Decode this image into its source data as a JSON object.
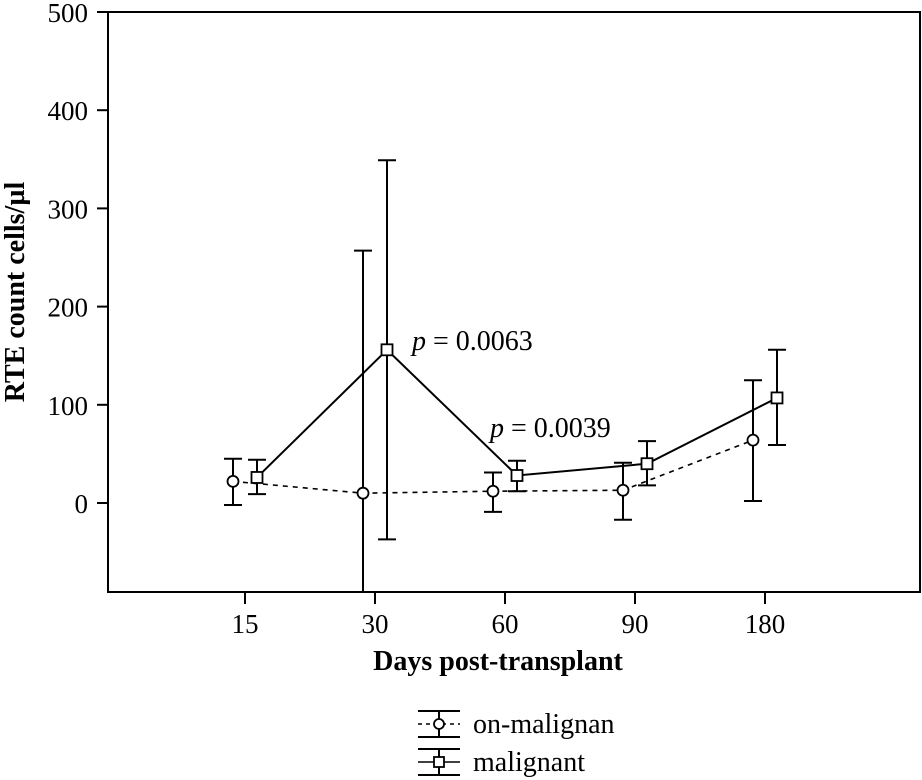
{
  "chart_data": {
    "type": "line",
    "title": "",
    "xlabel": "Days post-transplant",
    "ylabel": "RTE count cells/µl",
    "categories": [
      "15",
      "30",
      "60",
      "90",
      "180"
    ],
    "ylim": [
      -90,
      500
    ],
    "yticks": [
      0,
      100,
      200,
      300,
      400,
      500
    ],
    "grid": false,
    "series": [
      {
        "name": "on-malignan",
        "marker": "circle",
        "line": "dotted",
        "values": [
          22,
          10,
          12,
          13,
          64
        ],
        "err_low": [
          -2,
          -90,
          -9,
          -17,
          2
        ],
        "err_high": [
          45,
          257,
          31,
          41,
          125
        ]
      },
      {
        "name": "malignant",
        "marker": "square",
        "line": "solid",
        "values": [
          26,
          156,
          28,
          40,
          107
        ],
        "err_low": [
          9,
          -37,
          12,
          18,
          59
        ],
        "err_high": [
          44,
          349,
          43,
          63,
          156
        ]
      }
    ],
    "annotations": [
      {
        "text_italic": "p",
        "text": " = 0.0063",
        "category": "30",
        "y": 156
      },
      {
        "text_italic": "p",
        "text": " = 0.0039",
        "category": "60",
        "y": 68
      }
    ],
    "legend": {
      "position": "bottom-center"
    }
  }
}
